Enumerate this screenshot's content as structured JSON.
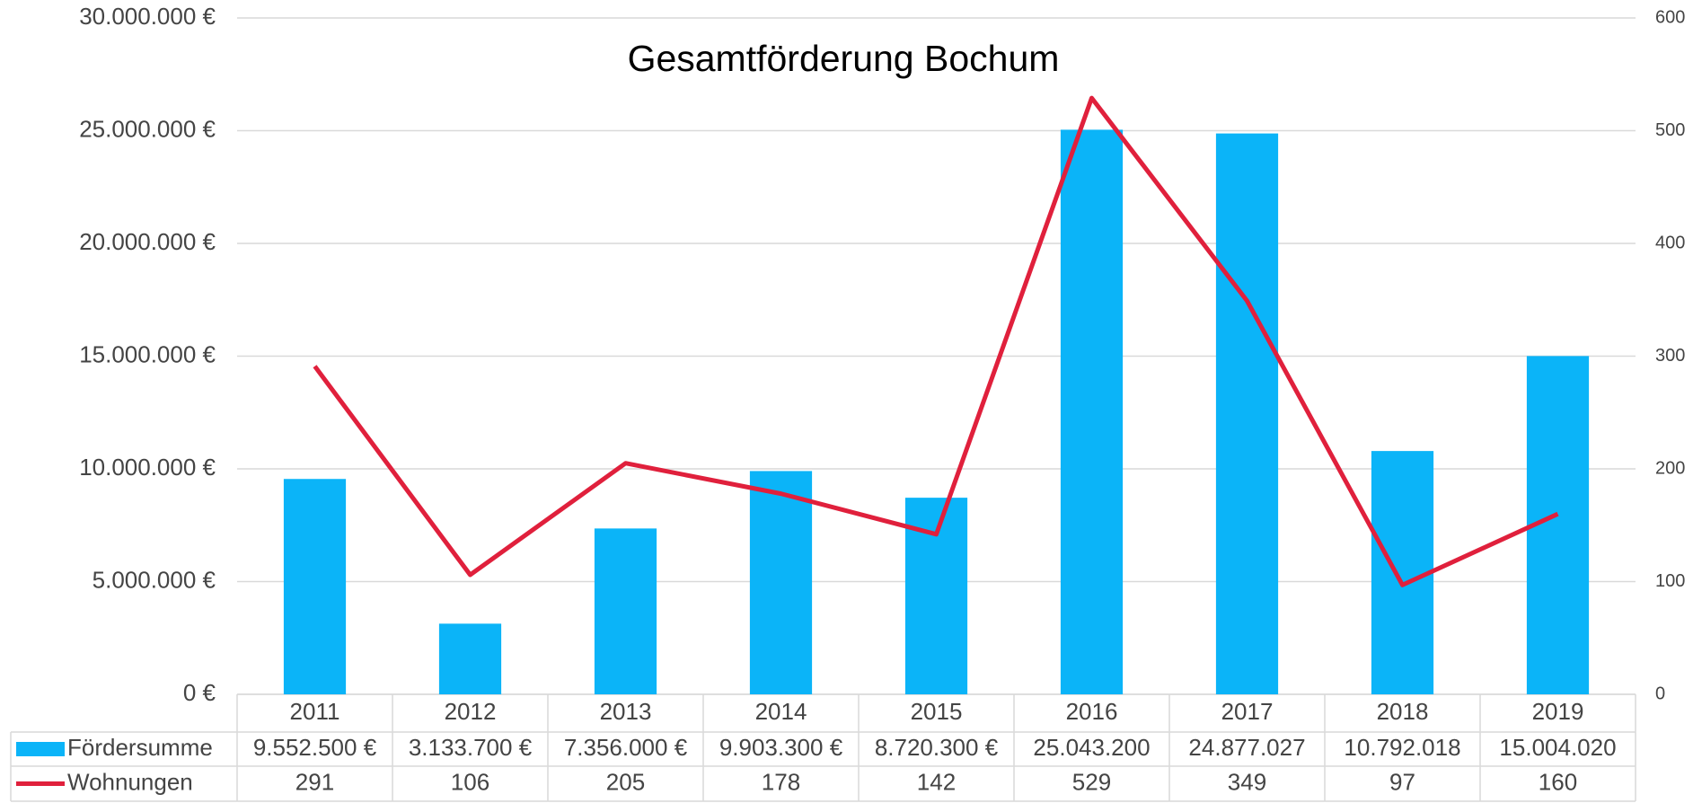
{
  "chart_data": {
    "type": "bar",
    "title": "Gesamtförderung Bochum",
    "categories": [
      "2011",
      "2012",
      "2013",
      "2014",
      "2015",
      "2016",
      "2017",
      "2018",
      "2019"
    ],
    "series": [
      {
        "name": "Fördersumme",
        "color": "#0bb4f8",
        "type": "bar",
        "values": [
          9552500,
          3133700,
          7356000,
          9903300,
          8720300,
          25043200,
          24877027,
          10792018,
          15004020
        ],
        "value_labels": [
          "9.552.500 €",
          "3.133.700 €",
          "7.356.000 €",
          "9.903.300 €",
          "8.720.300 €",
          "25.043.200",
          "24.877.027",
          "10.792.018",
          "15.004.020"
        ]
      },
      {
        "name": "Wohnungen",
        "color": "#e0203c",
        "type": "line",
        "axis": "y2",
        "values": [
          291,
          106,
          205,
          178,
          142,
          529,
          349,
          97,
          160
        ]
      }
    ],
    "ylim": [
      0,
      30000000
    ],
    "yticks": [
      {
        "value": 0,
        "label": "0 €"
      },
      {
        "value": 5000000,
        "label": "5.000.000 €"
      },
      {
        "value": 10000000,
        "label": "10.000.000 €"
      },
      {
        "value": 15000000,
        "label": "15.000.000 €"
      },
      {
        "value": 20000000,
        "label": "20.000.000 €"
      },
      {
        "value": 25000000,
        "label": "25.000.000 €"
      },
      {
        "value": 30000000,
        "label": "30.000.000 €"
      }
    ],
    "y2lim": [
      0,
      600
    ],
    "y2ticks": [
      0,
      100,
      200,
      300,
      400,
      500,
      600
    ],
    "grid": true
  }
}
